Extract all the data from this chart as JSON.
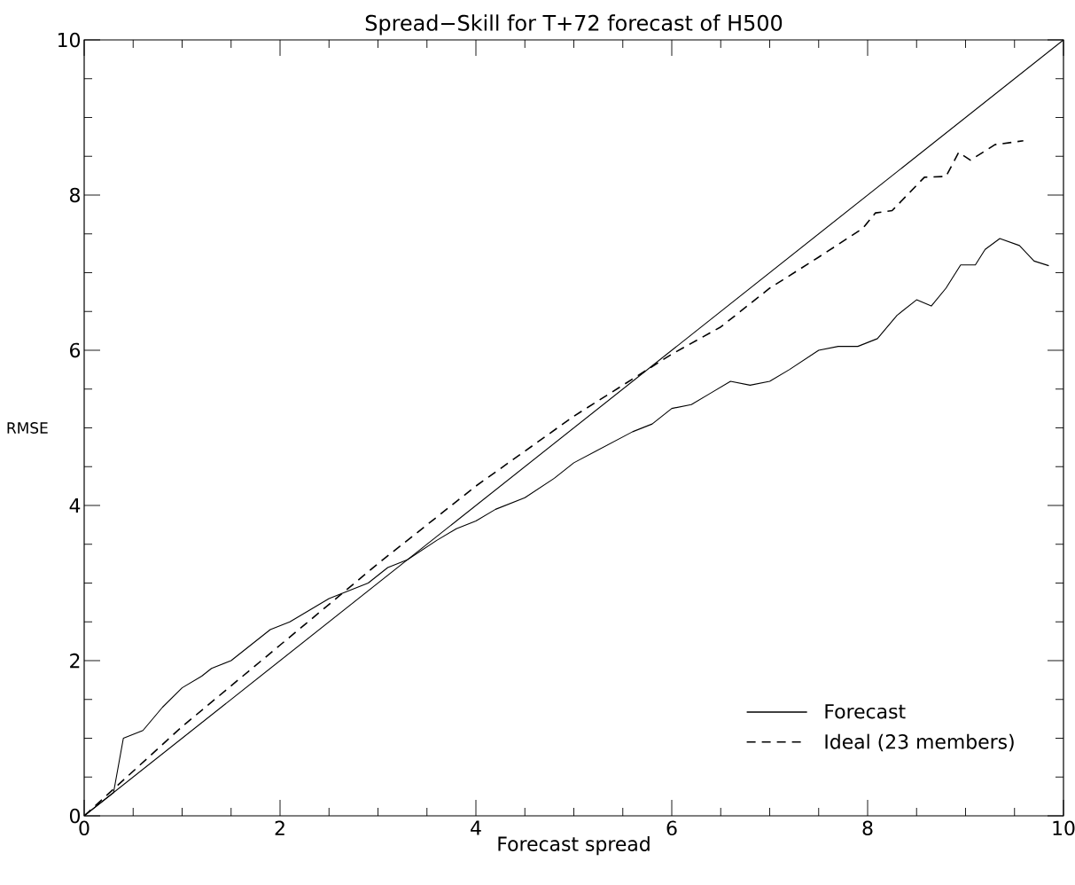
{
  "chart_data": {
    "type": "line",
    "title": "Spread−Skill for T+72 forecast of H500",
    "xlabel": "Forecast spread",
    "ylabel": "RMSE",
    "xlim": [
      0,
      10
    ],
    "ylim": [
      0,
      10
    ],
    "xticks": [
      0,
      2,
      4,
      6,
      8,
      10
    ],
    "yticks": [
      0,
      2,
      4,
      6,
      8,
      10
    ],
    "legend": "bottom right",
    "series": [
      {
        "name": "Forecast",
        "color": "#000000",
        "line_style": "solid",
        "x": [
          0,
          0.3,
          0.4,
          0.6,
          0.8,
          1.0,
          1.2,
          1.3,
          1.5,
          1.7,
          1.9,
          2.1,
          2.3,
          2.5,
          2.7,
          2.9,
          3.1,
          3.3,
          3.6,
          3.8,
          4.0,
          4.2,
          4.5,
          4.8,
          5.0,
          5.3,
          5.6,
          5.8,
          6.0,
          6.2,
          6.4,
          6.6,
          6.8,
          7.0,
          7.2,
          7.5,
          7.7,
          7.9,
          8.1,
          8.3,
          8.5,
          8.65,
          8.8,
          8.95,
          9.1,
          9.2,
          9.35,
          9.55,
          9.7,
          9.85
        ],
        "values": [
          0,
          0.3,
          1.0,
          1.1,
          1.4,
          1.65,
          1.8,
          1.9,
          2.0,
          2.2,
          2.4,
          2.5,
          2.65,
          2.8,
          2.9,
          3.0,
          3.2,
          3.3,
          3.55,
          3.7,
          3.8,
          3.95,
          4.1,
          4.35,
          4.55,
          4.75,
          4.95,
          5.05,
          5.25,
          5.3,
          5.45,
          5.6,
          5.55,
          5.6,
          5.75,
          6.0,
          6.05,
          6.05,
          6.15,
          6.45,
          6.65,
          6.57,
          6.8,
          7.1,
          7.1,
          7.3,
          7.44,
          7.35,
          7.15,
          7.09
        ]
      },
      {
        "name": "Ideal (23 members)",
        "color": "#000000",
        "line_style": "dashed",
        "x": [
          0,
          1,
          2,
          3,
          4,
          5,
          6,
          6.5,
          7,
          7.5,
          7.95,
          8.08,
          8.25,
          8.58,
          8.8,
          8.93,
          9.05,
          9.3,
          9.59
        ],
        "values": [
          0,
          1.15,
          2.2,
          3.25,
          4.25,
          5.15,
          5.95,
          6.3,
          6.8,
          7.2,
          7.57,
          7.77,
          7.8,
          8.23,
          8.24,
          8.55,
          8.45,
          8.65,
          8.7
        ]
      },
      {
        "color": "#000000",
        "line_style": "solid",
        "x": [
          0,
          10
        ],
        "values": [
          0,
          10
        ]
      }
    ]
  }
}
